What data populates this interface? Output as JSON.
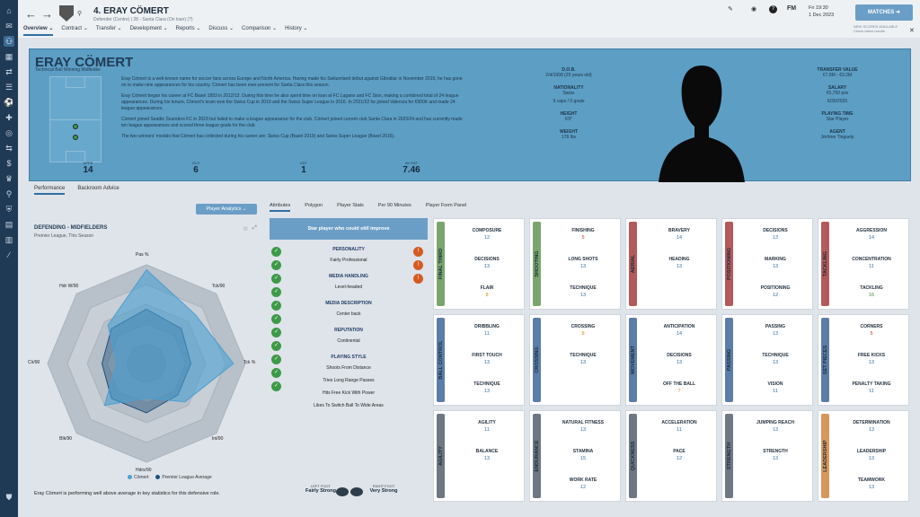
{
  "header": {
    "player_name": "4. ERAY CÖMERT",
    "player_sub": "Defender (Centre) | 28 - Santa Clara (On loan) (?)",
    "date_day": "Fri 19:30",
    "date": "1 Dec 2023",
    "fm": "FM",
    "matches_label": "MATCHES",
    "news": "NEW SCORES AVAILABLE",
    "news2": "Check latest results"
  },
  "menu": [
    {
      "label": "Overview ⌄"
    },
    {
      "label": "Contract ⌄"
    },
    {
      "label": "Transfer ⌄"
    },
    {
      "label": "Development ⌄"
    },
    {
      "label": "Reports ⌄"
    },
    {
      "label": "Discuss ⌄"
    },
    {
      "label": "Comparison ⌄"
    },
    {
      "label": "History ⌄"
    }
  ],
  "banner": {
    "name": "ERAY CÖMERT",
    "role": "Technical Ball Winning Midfielder",
    "bio": [
      "Eray Cömert is a well-known name for soccer fans across Europe and North America. Having made his Switzerland debut against Gibraltar in November 2019, he has gone on to make nine appearances for his country. Cömert has been ever-present for Santa Clara this season.",
      "Eray Cömert began his career at FC Basel 1893 in 2012/13. During this time he also spent time on loan at FC Lugano and FC Sion, making a combined total of 24 league appearances. During his tenure, Cömert's team won the Swiss Cup in 2019 and the Swiss Super League in 2016. In 2021/22 he joined Valencia for €900K and made 24 league appearances.",
      "Cömert joined Seattle Sounders FC in 2023 but failed to make a league appearance for the club. Cömert joined current club Santa Clara in 2023/24 and has currently made ten league appearances and scored three league goals for the club.",
      "The two winners' medals that Cömert has collected during his career are: Swiss Cup (Basel 2019) and Swiss Super League (Basel 2016)."
    ],
    "stats": [
      {
        "label": "APPS",
        "value": "14"
      },
      {
        "label": "GLS",
        "value": "6"
      },
      {
        "label": "AST",
        "value": "1"
      },
      {
        "label": "AV RAT",
        "value": "7.46"
      }
    ],
    "info_left": [
      {
        "k": "D.O.B.",
        "v": "2/4/1998 (25 years old)"
      },
      {
        "k": "NATIONALITY",
        "v": "Swiss"
      },
      {
        "k": "",
        "v": "9 caps / 0 goals"
      },
      {
        "k": "HEIGHT",
        "v": "6'0\""
      },
      {
        "k": "WEIGHT",
        "v": "176 lbs"
      }
    ],
    "info_right": [
      {
        "k": "TRANSFER VALUE",
        "v": "€7.8M - €9.2M"
      },
      {
        "k": "SALARY",
        "v": "€5,750 p/w"
      },
      {
        "k": "",
        "v": "6/30/2026"
      },
      {
        "k": "PLAYING TIME",
        "v": "Star Player"
      },
      {
        "k": "AGENT",
        "v": "Jérôme Tinguely"
      }
    ]
  },
  "subtabs": [
    {
      "label": "Performance"
    },
    {
      "label": "Backroom Advice"
    }
  ],
  "analytics_label": "Player Analytics ⌄",
  "radar": {
    "title": "DEFENDING - MIDFIELDERS",
    "subtitle": "Premier League, This Season",
    "labels": [
      "Pas %",
      "Tck/90",
      "Tck %",
      "Int/90",
      "Hdrs/90",
      "Blk/90",
      "Clr/90",
      "Hdr W/90"
    ],
    "legend": [
      "Cömert",
      "Premier League Average"
    ],
    "desc": "Eray Cömert is performing well above average in key statistics for this defensive role.",
    "colors": {
      "player": "#4a9fd1",
      "avg": "#1f4f7a"
    }
  },
  "attr_tabs": [
    {
      "label": "Attributes"
    },
    {
      "label": "Polygon"
    },
    {
      "label": "Player Stats"
    },
    {
      "label": "Per 90 Minutes"
    },
    {
      "label": "Player Form Panel"
    }
  ],
  "mid": {
    "top": "Star player who could still improve",
    "items": [
      {
        "t": "PERSONALITY",
        "h": true
      },
      {
        "t": "Fairly Professional",
        "h": false
      },
      {
        "t": "MEDIA HANDLING",
        "h": true
      },
      {
        "t": "Level-headed",
        "h": false
      },
      {
        "t": "MEDIA DESCRIPTION",
        "h": true
      },
      {
        "t": "Center back",
        "h": false
      },
      {
        "t": "REPUTATION",
        "h": true
      },
      {
        "t": "Continental",
        "h": false
      },
      {
        "t": "PLAYING STYLE",
        "h": true
      },
      {
        "t": "Shoots From Distance",
        "h": false
      },
      {
        "t": "Tries Long Range Passes",
        "h": false
      },
      {
        "t": "Hits Free Kick With Power",
        "h": false
      },
      {
        "t": "Likes To Switch Ball To Wide Areas",
        "h": false
      }
    ],
    "left_foot_label": "LEFT FOOT",
    "left_foot": "Fairly Strong",
    "right_foot_label": "RIGHT FOOT",
    "right_foot": "Very Strong"
  },
  "attributes": [
    {
      "group": "FINAL THIRD",
      "color": "#7aa66e",
      "items": [
        {
          "n": "COMPOSURE",
          "v": "12",
          "c": ""
        },
        {
          "n": "DECISIONS",
          "v": "13",
          "c": ""
        },
        {
          "n": "FLAIR",
          "v": "8",
          "c": "org"
        }
      ]
    },
    {
      "group": "SHOOTING",
      "color": "#7aa66e",
      "items": [
        {
          "n": "FINISHING",
          "v": "5",
          "c": "red"
        },
        {
          "n": "LONG SHOTS",
          "v": "13",
          "c": ""
        },
        {
          "n": "TECHNIQUE",
          "v": "13",
          "c": ""
        }
      ]
    },
    {
      "group": "AERIAL",
      "color": "#b45a5a",
      "items": [
        {
          "n": "BRAVERY",
          "v": "14",
          "c": ""
        },
        {
          "n": "HEADING",
          "v": "13",
          "c": ""
        }
      ]
    },
    {
      "group": "POSITIONING",
      "color": "#b45a5a",
      "items": [
        {
          "n": "DECISIONS",
          "v": "13",
          "c": ""
        },
        {
          "n": "MARKING",
          "v": "13",
          "c": ""
        },
        {
          "n": "POSITIONING",
          "v": "12",
          "c": ""
        }
      ]
    },
    {
      "group": "TACKLING",
      "color": "#b45a5a",
      "items": [
        {
          "n": "AGGRESSION",
          "v": "14",
          "c": ""
        },
        {
          "n": "CONCENTRATION",
          "v": "11",
          "c": ""
        },
        {
          "n": "TACKLING",
          "v": "16",
          "c": "grn"
        }
      ]
    },
    {
      "group": "BALL CONTROL",
      "color": "#5b7ea8",
      "items": [
        {
          "n": "DRIBBLING",
          "v": "11",
          "c": ""
        },
        {
          "n": "FIRST TOUCH",
          "v": "13",
          "c": ""
        },
        {
          "n": "TECHNIQUE",
          "v": "13",
          "c": ""
        }
      ]
    },
    {
      "group": "CROSSING",
      "color": "#5b7ea8",
      "items": [
        {
          "n": "CROSSING",
          "v": "8",
          "c": "org"
        },
        {
          "n": "TECHNIQUE",
          "v": "13",
          "c": ""
        }
      ]
    },
    {
      "group": "MOVEMENT",
      "color": "#5b7ea8",
      "items": [
        {
          "n": "ANTICIPATION",
          "v": "14",
          "c": ""
        },
        {
          "n": "DECISIONS",
          "v": "13",
          "c": ""
        },
        {
          "n": "OFF THE BALL",
          "v": "7",
          "c": "org"
        }
      ]
    },
    {
      "group": "PASSING",
      "color": "#5b7ea8",
      "items": [
        {
          "n": "PASSING",
          "v": "13",
          "c": ""
        },
        {
          "n": "TECHNIQUE",
          "v": "13",
          "c": ""
        },
        {
          "n": "VISION",
          "v": "11",
          "c": ""
        }
      ]
    },
    {
      "group": "SET PIECES",
      "color": "#5b7ea8",
      "items": [
        {
          "n": "CORNERS",
          "v": "5",
          "c": "red"
        },
        {
          "n": "FREE KICKS",
          "v": "13",
          "c": ""
        },
        {
          "n": "PENALTY TAKING",
          "v": "11",
          "c": ""
        }
      ]
    },
    {
      "group": "AGILITY",
      "color": "#6d7883",
      "items": [
        {
          "n": "AGILITY",
          "v": "11",
          "c": ""
        },
        {
          "n": "BALANCE",
          "v": "13",
          "c": ""
        }
      ]
    },
    {
      "group": "ENDURANCE",
      "color": "#6d7883",
      "items": [
        {
          "n": "NATURAL FITNESS",
          "v": "13",
          "c": ""
        },
        {
          "n": "STAMINA",
          "v": "15",
          "c": ""
        },
        {
          "n": "WORK RATE",
          "v": "12",
          "c": ""
        }
      ]
    },
    {
      "group": "QUICKNESS",
      "color": "#6d7883",
      "items": [
        {
          "n": "ACCELERATION",
          "v": "11",
          "c": ""
        },
        {
          "n": "PACE",
          "v": "12",
          "c": ""
        }
      ]
    },
    {
      "group": "STRENGTH",
      "color": "#6d7883",
      "items": [
        {
          "n": "JUMPING REACH",
          "v": "13",
          "c": ""
        },
        {
          "n": "STRENGTH",
          "v": "13",
          "c": ""
        }
      ]
    },
    {
      "group": "LEADERSHIP",
      "color": "#d8975a",
      "items": [
        {
          "n": "DETERMINATION",
          "v": "13",
          "c": ""
        },
        {
          "n": "LEADERSHIP",
          "v": "13",
          "c": ""
        },
        {
          "n": "TEAMWORK",
          "v": "13",
          "c": ""
        }
      ]
    }
  ]
}
